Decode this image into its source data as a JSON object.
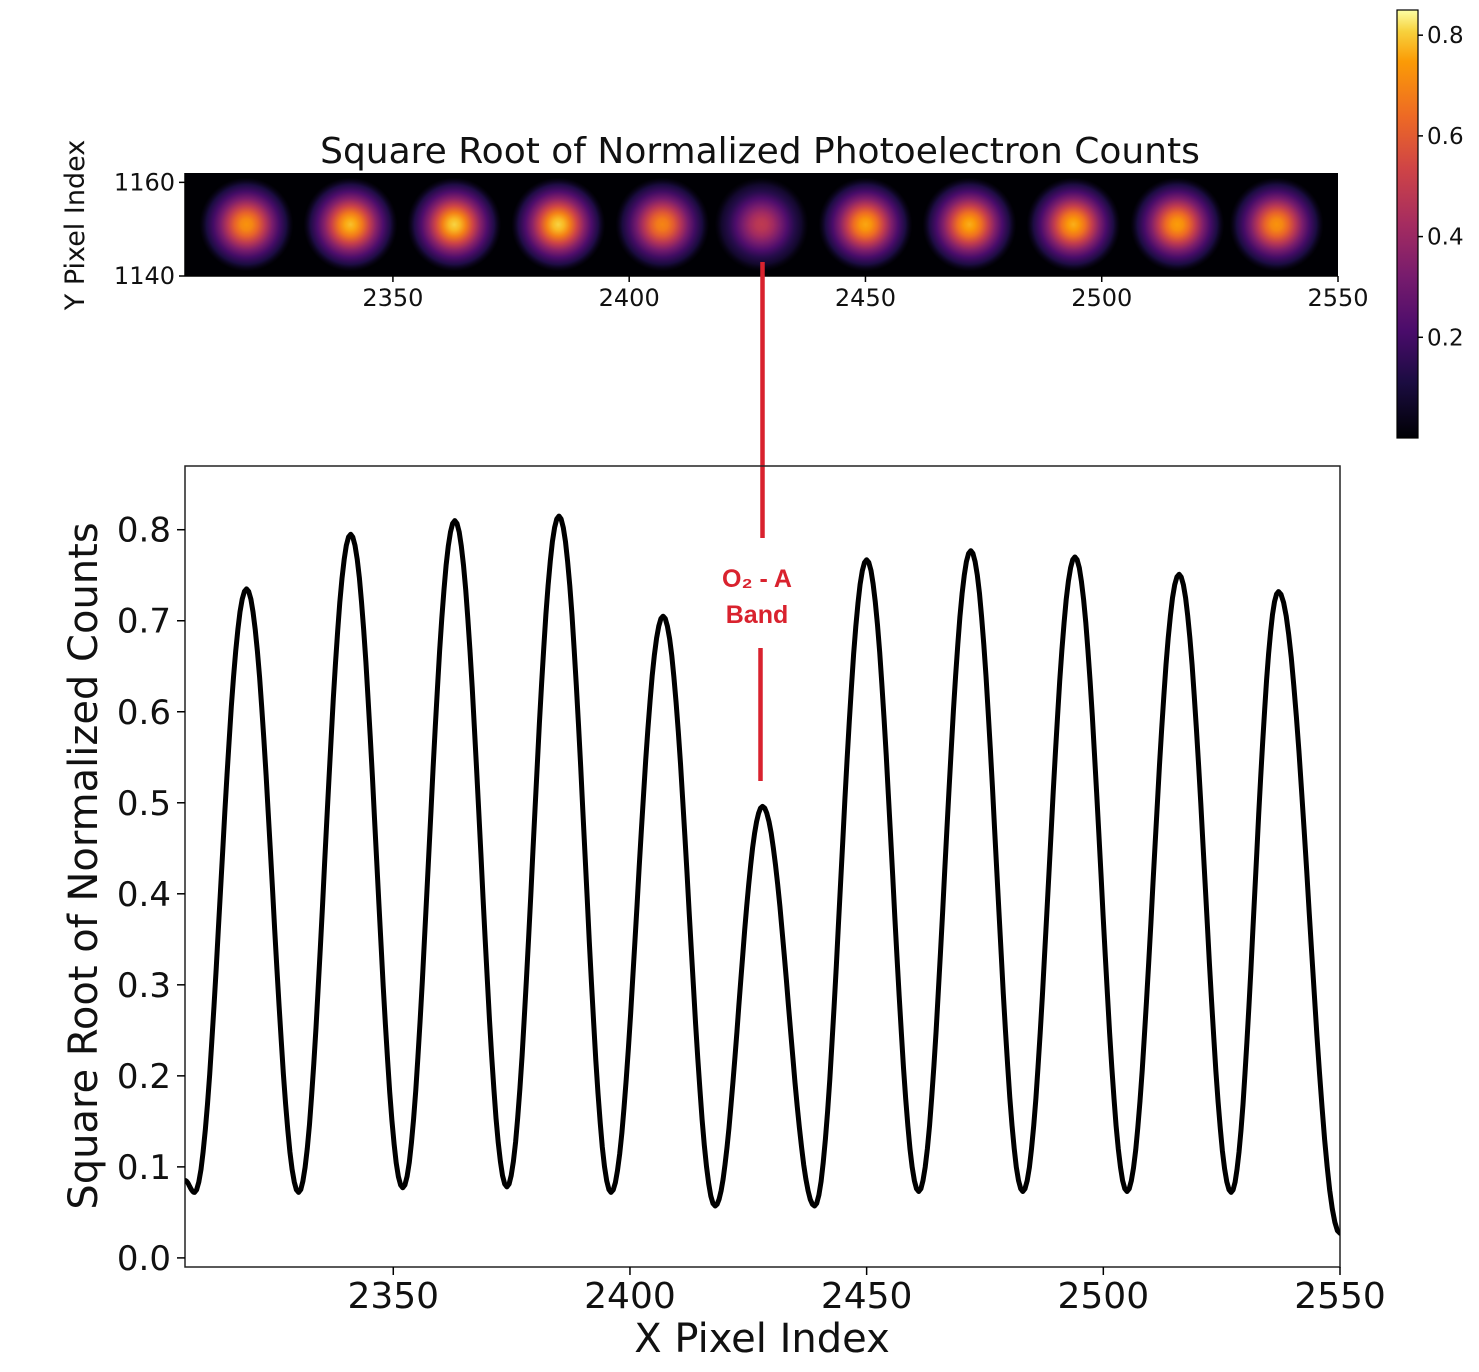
{
  "chart_data": [
    {
      "type": "heatmap",
      "title": "Square Root of Normalized Photoelectron Counts",
      "xlabel": "",
      "ylabel": "Y Pixel Index",
      "xlim": [
        2306,
        2550
      ],
      "ylim": [
        1140,
        1162
      ],
      "x_ticks": [
        "2350",
        "2400",
        "2450",
        "2500",
        "2550"
      ],
      "y_ticks": [
        "1160",
        "1140"
      ],
      "colormap": "inferno",
      "colorbar": {
        "range": [
          0,
          0.85
        ],
        "ticks": [
          "0.2",
          "0.4",
          "0.6",
          "0.8"
        ]
      },
      "spots": [
        {
          "x": 2319,
          "y": 1151,
          "value": 0.73
        },
        {
          "x": 2341,
          "y": 1151,
          "value": 0.79
        },
        {
          "x": 2363,
          "y": 1151,
          "value": 0.81
        },
        {
          "x": 2385,
          "y": 1151,
          "value": 0.81
        },
        {
          "x": 2407,
          "y": 1151,
          "value": 0.7
        },
        {
          "x": 2428,
          "y": 1151,
          "value": 0.49
        },
        {
          "x": 2450,
          "y": 1151,
          "value": 0.76
        },
        {
          "x": 2472,
          "y": 1151,
          "value": 0.77
        },
        {
          "x": 2494,
          "y": 1151,
          "value": 0.77
        },
        {
          "x": 2516,
          "y": 1151,
          "value": 0.75
        },
        {
          "x": 2537,
          "y": 1151,
          "value": 0.73
        }
      ]
    },
    {
      "type": "line",
      "title": "",
      "xlabel": "X Pixel Index",
      "ylabel": "Square Root of Normalized Counts",
      "xlim": [
        2306,
        2550
      ],
      "ylim": [
        -0.01,
        0.87
      ],
      "x_ticks": [
        "2350",
        "2400",
        "2450",
        "2500",
        "2550"
      ],
      "y_ticks": [
        "0.0",
        "0.1",
        "0.2",
        "0.3",
        "0.4",
        "0.5",
        "0.6",
        "0.7",
        "0.8"
      ],
      "series": [
        {
          "color": "#000000",
          "peaks": [
            {
              "x": 2319,
              "value": 0.735
            },
            {
              "x": 2341,
              "value": 0.795
            },
            {
              "x": 2363,
              "value": 0.81
            },
            {
              "x": 2385,
              "value": 0.815
            },
            {
              "x": 2407,
              "value": 0.705
            },
            {
              "x": 2428,
              "value": 0.496
            },
            {
              "x": 2450,
              "value": 0.767
            },
            {
              "x": 2472,
              "value": 0.777
            },
            {
              "x": 2494,
              "value": 0.77
            },
            {
              "x": 2516,
              "value": 0.751
            },
            {
              "x": 2537,
              "value": 0.732
            }
          ],
          "minima": [
            {
              "x": 2306,
              "value": 0.085
            },
            {
              "x": 2308,
              "value": 0.072
            },
            {
              "x": 2330,
              "value": 0.072
            },
            {
              "x": 2352,
              "value": 0.077
            },
            {
              "x": 2374,
              "value": 0.078
            },
            {
              "x": 2396,
              "value": 0.072
            },
            {
              "x": 2418,
              "value": 0.057
            },
            {
              "x": 2439,
              "value": 0.057
            },
            {
              "x": 2461,
              "value": 0.073
            },
            {
              "x": 2483,
              "value": 0.073
            },
            {
              "x": 2505,
              "value": 0.073
            },
            {
              "x": 2527,
              "value": 0.072
            },
            {
              "x": 2550,
              "value": 0.027
            }
          ]
        }
      ],
      "annotation": {
        "line1": "O₂ - A",
        "line2": "Band",
        "x": 2428
      }
    }
  ]
}
